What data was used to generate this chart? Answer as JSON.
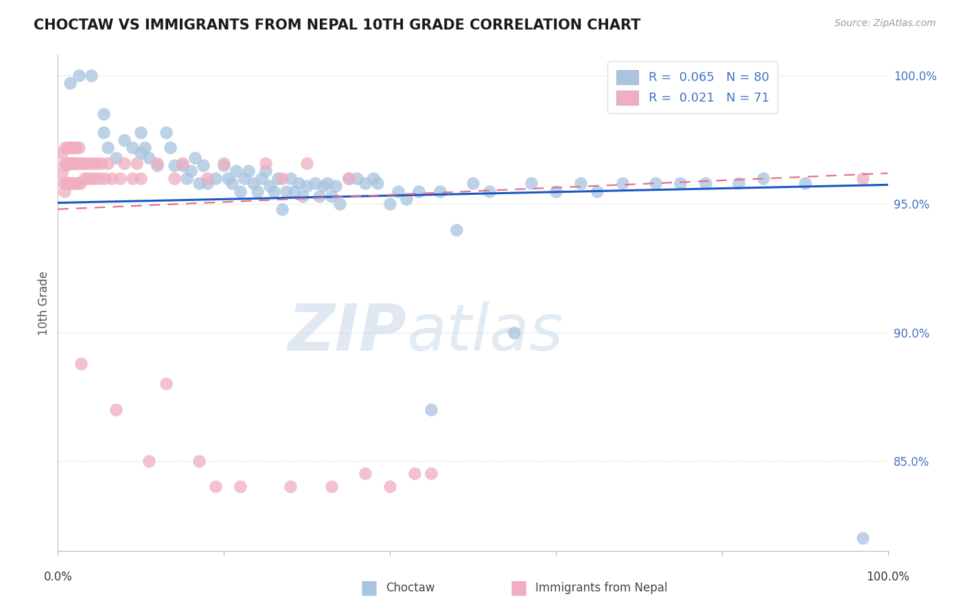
{
  "title": "CHOCTAW VS IMMIGRANTS FROM NEPAL 10TH GRADE CORRELATION CHART",
  "source": "Source: ZipAtlas.com",
  "ylabel": "10th Grade",
  "legend_blue_label": "R =  0.065   N = 80",
  "legend_pink_label": "R =  0.021   N = 71",
  "blue_color": "#a8c4e0",
  "pink_color": "#f0aec0",
  "trend_blue": "#1a56c4",
  "trend_pink": "#e07090",
  "watermark_zip": "ZIP",
  "watermark_atlas": "atlas",
  "xlim": [
    0.0,
    1.0
  ],
  "ylim": [
    0.815,
    1.008
  ],
  "ytick_vals": [
    0.85,
    0.9,
    0.95,
    1.0
  ],
  "ytick_labels": [
    "85.0%",
    "90.0%",
    "95.0%",
    "100.0%"
  ],
  "blue_scatter_x": [
    0.015,
    0.025,
    0.04,
    0.055,
    0.055,
    0.06,
    0.07,
    0.08,
    0.09,
    0.1,
    0.1,
    0.105,
    0.11,
    0.12,
    0.13,
    0.135,
    0.14,
    0.15,
    0.155,
    0.16,
    0.165,
    0.17,
    0.175,
    0.18,
    0.19,
    0.2,
    0.205,
    0.21,
    0.215,
    0.22,
    0.225,
    0.23,
    0.235,
    0.24,
    0.245,
    0.25,
    0.255,
    0.26,
    0.265,
    0.27,
    0.275,
    0.28,
    0.285,
    0.29,
    0.295,
    0.3,
    0.31,
    0.315,
    0.32,
    0.325,
    0.33,
    0.335,
    0.34,
    0.35,
    0.36,
    0.37,
    0.38,
    0.385,
    0.4,
    0.41,
    0.42,
    0.435,
    0.45,
    0.46,
    0.48,
    0.5,
    0.52,
    0.55,
    0.57,
    0.6,
    0.63,
    0.65,
    0.68,
    0.72,
    0.75,
    0.78,
    0.82,
    0.85,
    0.9,
    0.97
  ],
  "blue_scatter_y": [
    0.997,
    1.0,
    1.0,
    0.978,
    0.985,
    0.972,
    0.968,
    0.975,
    0.972,
    0.97,
    0.978,
    0.972,
    0.968,
    0.965,
    0.978,
    0.972,
    0.965,
    0.965,
    0.96,
    0.963,
    0.968,
    0.958,
    0.965,
    0.958,
    0.96,
    0.965,
    0.96,
    0.958,
    0.963,
    0.955,
    0.96,
    0.963,
    0.958,
    0.955,
    0.96,
    0.963,
    0.957,
    0.955,
    0.96,
    0.948,
    0.955,
    0.96,
    0.955,
    0.958,
    0.953,
    0.957,
    0.958,
    0.953,
    0.957,
    0.958,
    0.953,
    0.957,
    0.95,
    0.96,
    0.96,
    0.958,
    0.96,
    0.958,
    0.95,
    0.955,
    0.952,
    0.955,
    0.87,
    0.955,
    0.94,
    0.958,
    0.955,
    0.9,
    0.958,
    0.955,
    0.958,
    0.955,
    0.958,
    0.958,
    0.958,
    0.958,
    0.958,
    0.96,
    0.958,
    0.82
  ],
  "pink_scatter_x": [
    0.005,
    0.005,
    0.007,
    0.008,
    0.008,
    0.009,
    0.01,
    0.01,
    0.012,
    0.013,
    0.013,
    0.014,
    0.015,
    0.015,
    0.016,
    0.017,
    0.017,
    0.018,
    0.018,
    0.019,
    0.02,
    0.02,
    0.021,
    0.022,
    0.023,
    0.024,
    0.025,
    0.026,
    0.027,
    0.028,
    0.03,
    0.032,
    0.033,
    0.035,
    0.037,
    0.04,
    0.042,
    0.045,
    0.047,
    0.05,
    0.053,
    0.057,
    0.06,
    0.065,
    0.07,
    0.075,
    0.08,
    0.09,
    0.095,
    0.1,
    0.11,
    0.12,
    0.13,
    0.14,
    0.15,
    0.17,
    0.18,
    0.19,
    0.2,
    0.22,
    0.25,
    0.27,
    0.28,
    0.3,
    0.33,
    0.35,
    0.37,
    0.4,
    0.43,
    0.45,
    0.97
  ],
  "pink_scatter_y": [
    0.97,
    0.962,
    0.958,
    0.966,
    0.955,
    0.972,
    0.965,
    0.958,
    0.972,
    0.966,
    0.958,
    0.972,
    0.966,
    0.958,
    0.972,
    0.966,
    0.958,
    0.972,
    0.966,
    0.958,
    0.972,
    0.966,
    0.958,
    0.972,
    0.966,
    0.958,
    0.972,
    0.966,
    0.958,
    0.888,
    0.966,
    0.96,
    0.966,
    0.96,
    0.966,
    0.96,
    0.966,
    0.96,
    0.966,
    0.96,
    0.966,
    0.96,
    0.966,
    0.96,
    0.87,
    0.96,
    0.966,
    0.96,
    0.966,
    0.96,
    0.85,
    0.966,
    0.88,
    0.96,
    0.966,
    0.85,
    0.96,
    0.84,
    0.966,
    0.84,
    0.966,
    0.96,
    0.84,
    0.966,
    0.84,
    0.96,
    0.845,
    0.84,
    0.845,
    0.845,
    0.96
  ],
  "trend_blue_x0": 0.0,
  "trend_blue_y0": 0.9505,
  "trend_blue_x1": 1.0,
  "trend_blue_y1": 0.9575,
  "trend_pink_x0": 0.0,
  "trend_pink_y0": 0.948,
  "trend_pink_x1": 1.0,
  "trend_pink_y1": 0.962
}
